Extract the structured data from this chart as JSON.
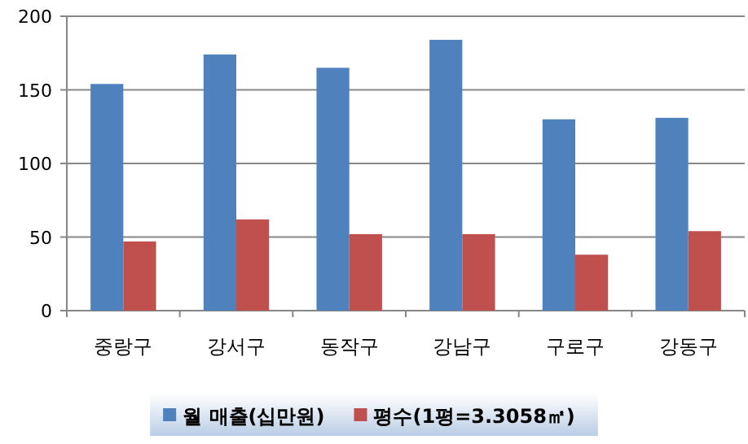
{
  "chart_data": {
    "type": "bar",
    "categories": [
      "중랑구",
      "강서구",
      "동작구",
      "강남구",
      "구로구",
      "강동구"
    ],
    "series": [
      {
        "name": "월 매출(십만원)",
        "color": "#4f81bd",
        "values": [
          154,
          174,
          165,
          184,
          130,
          131
        ]
      },
      {
        "name": "평수(1평=3.3058㎡)",
        "color": "#c0504d",
        "values": [
          47,
          62,
          52,
          52,
          38,
          54
        ]
      }
    ],
    "ylim": [
      0,
      200
    ],
    "yticks": [
      0,
      50,
      100,
      150,
      200
    ],
    "grid": "y",
    "legend": "bottom"
  }
}
